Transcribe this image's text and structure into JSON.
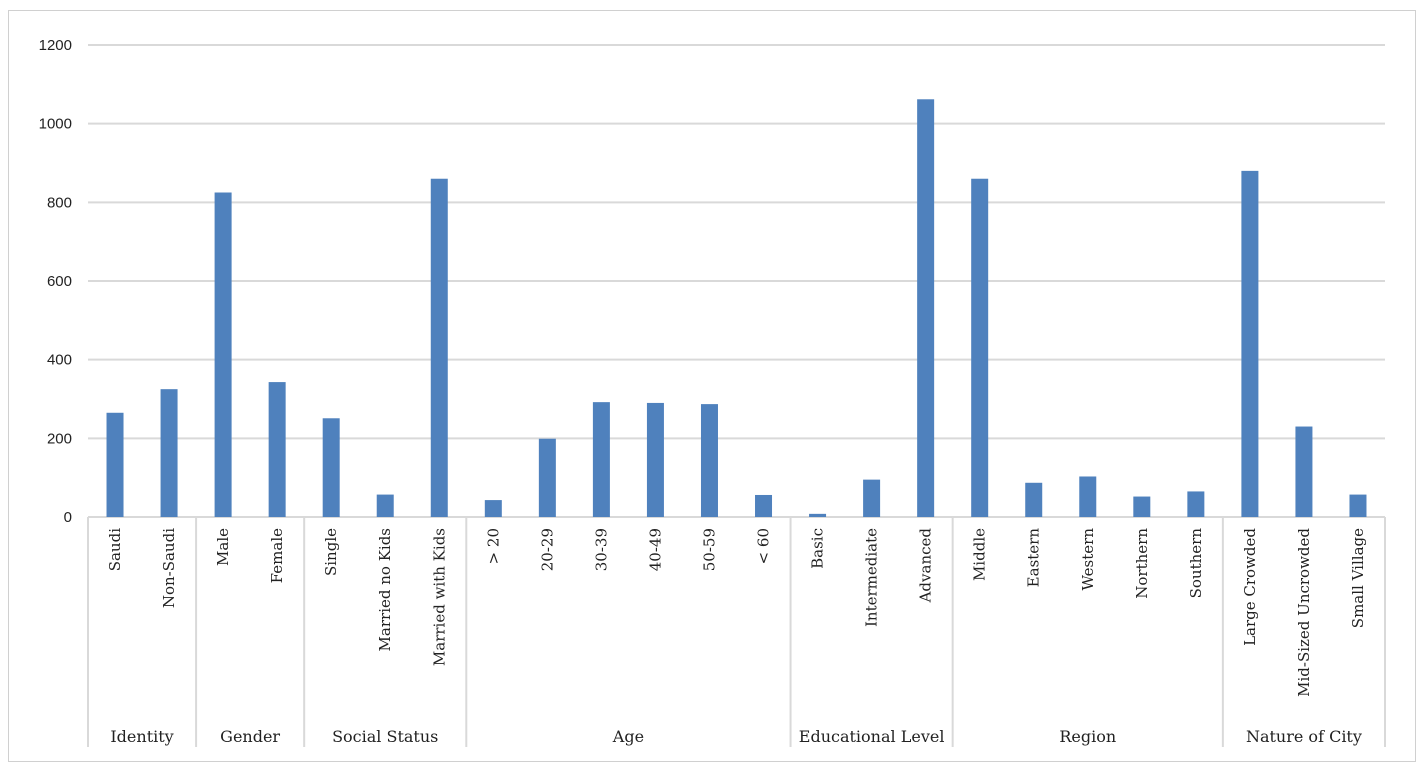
{
  "chart_data": {
    "type": "bar",
    "title": "",
    "xlabel": "",
    "ylabel": "",
    "ylim": [
      0,
      1200
    ],
    "yticks": [
      0,
      200,
      400,
      600,
      800,
      1000,
      1200
    ],
    "grid": true,
    "bar_color": "#4f81bd",
    "groups": [
      {
        "name": "Identity",
        "categories": [
          "Saudi",
          "Non-Saudi"
        ],
        "values": [
          265,
          325
        ]
      },
      {
        "name": "Gender",
        "categories": [
          "Male",
          "Female"
        ],
        "values": [
          825,
          343
        ]
      },
      {
        "name": "Social Status",
        "categories": [
          "Single",
          "Married no Kids",
          "Married with Kids"
        ],
        "values": [
          251,
          57,
          860
        ]
      },
      {
        "name": "Age",
        "categories": [
          "> 20",
          "20-29",
          "30-39",
          "40-49",
          "50-59",
          "< 60"
        ],
        "values": [
          43,
          199,
          292,
          290,
          287,
          56
        ]
      },
      {
        "name": "Educational Level",
        "categories": [
          "Basic",
          "Intermediate",
          "Advanced"
        ],
        "values": [
          8,
          95,
          1062
        ]
      },
      {
        "name": "Region",
        "categories": [
          "Middle",
          "Eastern",
          "Western",
          "Northern",
          "Southern"
        ],
        "values": [
          860,
          87,
          103,
          52,
          65
        ]
      },
      {
        "name": "Nature of City",
        "categories": [
          "Large Crowded",
          "Mid-Sized Uncrowded",
          "Small Village"
        ],
        "values": [
          880,
          230,
          57
        ]
      }
    ]
  }
}
